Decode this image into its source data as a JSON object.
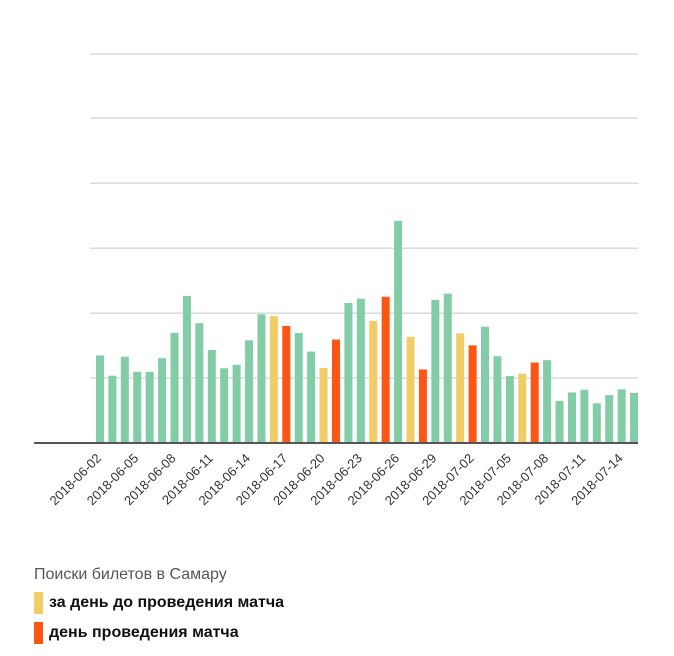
{
  "chart_data": {
    "type": "bar",
    "title": "",
    "xlabel": "",
    "ylabel": "",
    "grid": true,
    "ylim": [
      0,
      100
    ],
    "tick_labels": [
      "2018-06-02",
      "2018-06-05",
      "2018-06-08",
      "2018-06-11",
      "2018-06-14",
      "2018-06-17",
      "2018-06-20",
      "2018-06-23",
      "2018-06-26",
      "2018-06-29",
      "2018-07-02",
      "2018-07-05",
      "2018-07-08",
      "2018-07-11",
      "2018-07-14"
    ],
    "categories": [
      "2018-06-02",
      "2018-06-03",
      "2018-06-04",
      "2018-06-05",
      "2018-06-06",
      "2018-06-07",
      "2018-06-08",
      "2018-06-09",
      "2018-06-10",
      "2018-06-11",
      "2018-06-12",
      "2018-06-13",
      "2018-06-14",
      "2018-06-15",
      "2018-06-16",
      "2018-06-17",
      "2018-06-18",
      "2018-06-19",
      "2018-06-20",
      "2018-06-21",
      "2018-06-22",
      "2018-06-23",
      "2018-06-24",
      "2018-06-25",
      "2018-06-26",
      "2018-06-27",
      "2018-06-28",
      "2018-06-29",
      "2018-06-30",
      "2018-07-01",
      "2018-07-02",
      "2018-07-03",
      "2018-07-04",
      "2018-07-05",
      "2018-07-06",
      "2018-07-07",
      "2018-07-08",
      "2018-07-09",
      "2018-07-10",
      "2018-07-11",
      "2018-07-12",
      "2018-07-13",
      "2018-07-14",
      "2018-07-15"
    ],
    "values": [
      22.5,
      17.3,
      22.2,
      18.3,
      18.3,
      21.8,
      28.3,
      37.8,
      30.8,
      23.9,
      19.2,
      20.1,
      26.4,
      33.1,
      32.6,
      30.1,
      28.3,
      23.5,
      19.3,
      26.6,
      36.0,
      37.1,
      31.4,
      37.6,
      57.1,
      27.3,
      18.9,
      36.8,
      38.4,
      28.2,
      25.1,
      29.9,
      22.3,
      17.2,
      17.8,
      20.7,
      21.3,
      10.8,
      13.0,
      13.7,
      10.2,
      12.3,
      13.8,
      12.9
    ],
    "kinds": [
      "normal",
      "normal",
      "normal",
      "normal",
      "normal",
      "normal",
      "normal",
      "normal",
      "normal",
      "normal",
      "normal",
      "normal",
      "normal",
      "normal",
      "before",
      "match",
      "normal",
      "normal",
      "before",
      "match",
      "normal",
      "normal",
      "before",
      "match",
      "normal",
      "before",
      "match",
      "normal",
      "normal",
      "before",
      "match",
      "normal",
      "normal",
      "normal",
      "before",
      "match",
      "normal",
      "normal",
      "normal",
      "normal",
      "normal",
      "normal",
      "normal",
      "normal"
    ],
    "colors": {
      "normal": "#82cca6",
      "before": "#f1cd67",
      "match": "#fd5514",
      "grid": "#c8c8c8",
      "axis": "#555555"
    },
    "legend": {
      "title": "Поиски билетов в Самару",
      "position": "bottom-left",
      "items": [
        {
          "label": "за день до проведения матча",
          "color": "#f1cd67"
        },
        {
          "label": "день проведения матча",
          "color": "#fd5514"
        }
      ]
    }
  }
}
